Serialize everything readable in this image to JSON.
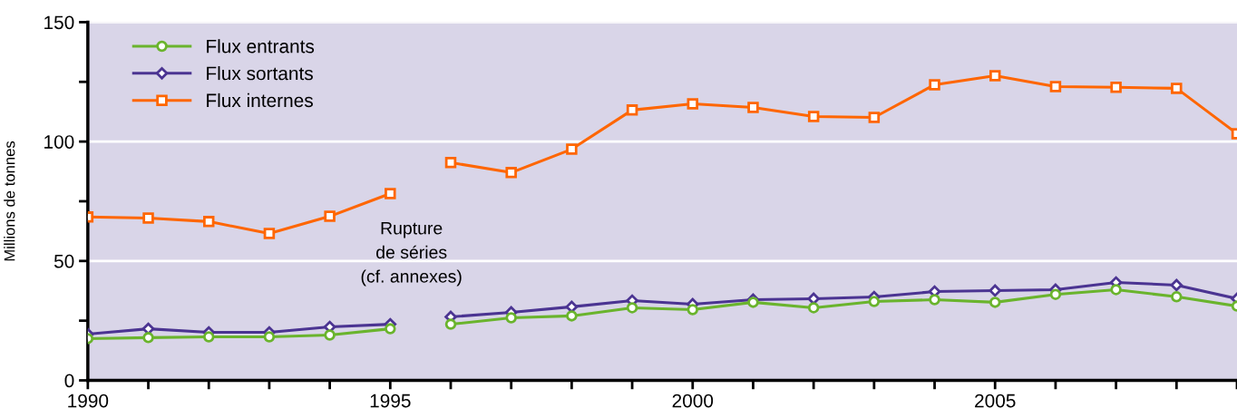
{
  "chart_data": {
    "type": "line",
    "ylabel": "Millions de tonnes",
    "x": [
      1990,
      1991,
      1992,
      1993,
      1994,
      1995,
      1995.5,
      1996,
      1997,
      1998,
      1999,
      2000,
      2001,
      2002,
      2003,
      2004,
      2005,
      2006,
      2007,
      2008,
      2009
    ],
    "series": [
      {
        "name": "Flux entrants",
        "color": "#6ab42d",
        "marker": "circle",
        "values": [
          17.5,
          17.9,
          18.2,
          18.2,
          19.0,
          21.6,
          null,
          23.5,
          26.2,
          27.0,
          30.4,
          29.6,
          32.7,
          30.4,
          33.0,
          33.8,
          32.7,
          36.0,
          38.0,
          35.0,
          31.1
        ]
      },
      {
        "name": "Flux sortants",
        "color": "#4b3492",
        "marker": "diamond",
        "values": [
          19.4,
          21.6,
          20.1,
          20.1,
          22.4,
          23.5,
          null,
          26.6,
          28.5,
          30.8,
          33.4,
          31.9,
          33.8,
          34.2,
          34.9,
          37.2,
          37.6,
          38.0,
          41.0,
          39.9,
          34.2
        ]
      },
      {
        "name": "Flux internes",
        "color": "#ff6600",
        "marker": "square",
        "values": [
          68.4,
          68.0,
          66.5,
          61.5,
          68.7,
          78.2,
          null,
          91.2,
          87.0,
          96.8,
          113.2,
          115.8,
          114.3,
          110.5,
          110.1,
          123.8,
          127.6,
          123.0,
          122.7,
          122.3,
          103.3
        ]
      }
    ],
    "xlim": [
      1990,
      2009
    ],
    "ylim": [
      0,
      150
    ],
    "xticks": [
      1990,
      {
        "value": 1991,
        "label": null
      },
      {
        "value": 1992,
        "label": null
      },
      {
        "value": 1993,
        "label": null
      },
      {
        "value": 1994,
        "label": null
      },
      1995,
      {
        "value": 1996,
        "label": null
      },
      {
        "value": 1997,
        "label": null
      },
      {
        "value": 1998,
        "label": null
      },
      {
        "value": 1999,
        "label": null
      },
      2000,
      {
        "value": 2001,
        "label": null
      },
      {
        "value": 2002,
        "label": null
      },
      {
        "value": 2003,
        "label": null
      },
      {
        "value": 2004,
        "label": null
      },
      2005,
      {
        "value": 2006,
        "label": null
      },
      {
        "value": 2007,
        "label": null
      },
      {
        "value": 2008,
        "label": null
      },
      {
        "value": 2009,
        "label": null
      }
    ],
    "yticks": [
      0,
      {
        "value": 25,
        "label": null
      },
      50,
      {
        "value": 75,
        "label": null
      },
      100,
      {
        "value": 125,
        "label": null
      },
      150
    ],
    "grid": "y",
    "legend": "top left",
    "line_style": "solid",
    "annotations": [
      "Rupture\nde séries\n(cf. annexes)"
    ]
  }
}
